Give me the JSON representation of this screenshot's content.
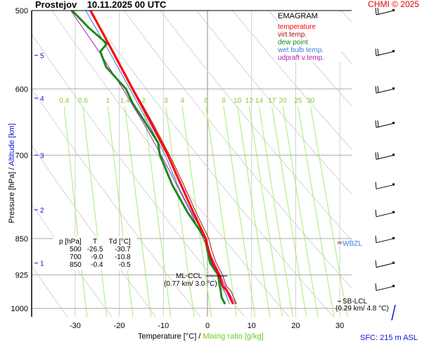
{
  "header": {
    "title": "Prostejov    10.11.2025 00 UTC",
    "copyright": "CHMI © 2025"
  },
  "legend": {
    "title": "EMAGRAM",
    "items": [
      {
        "label": "temperature",
        "color": "#ff0000"
      },
      {
        "label": "virt.temp.",
        "color": "#a01010"
      },
      {
        "label": "dew point",
        "color": "#1a8a1a"
      },
      {
        "label": "wet bulb temp.",
        "color": "#3a7ae0"
      },
      {
        "label": "udpraft v.temp.",
        "color": "#b020b0"
      }
    ]
  },
  "table": {
    "headers": [
      "p [hPa]",
      "T",
      "Td [°C]"
    ],
    "rows": [
      [
        "500",
        "-26.5",
        "-30.7"
      ],
      [
        "700",
        "-9.0",
        "-10.8"
      ],
      [
        "850",
        "-0.4",
        "-0.5"
      ]
    ]
  },
  "annotations": {
    "ml_ccl": "ML-CCL",
    "ml_ccl_val": "(0.77 km/ 3.0 °C)",
    "sb_lcl": "SB-LCL",
    "sb_lcl_val": "(0.29 km/ 4.8 °C)",
    "wbzl": "WBZL",
    "sfc": "SFC: 215 m ASL"
  },
  "chart_data": {
    "type": "line",
    "title": "EMAGRAM",
    "xlabel": "Temperature [°C]",
    "xlabel2": "Mixing ratio [g/kg]",
    "ylabel": "Pressure [hPa]",
    "ylabel2": "Altitude [km]",
    "xlim": [
      -40,
      33
    ],
    "ylim": [
      1000,
      500
    ],
    "x_ticks": [
      -30,
      -20,
      -10,
      0,
      10,
      20,
      30
    ],
    "p_ticks": [
      500,
      600,
      700,
      850,
      925,
      1000
    ],
    "alt_ticks": [
      {
        "km": 5,
        "p": 555
      },
      {
        "km": 4,
        "p": 613
      },
      {
        "km": 3,
        "p": 700
      },
      {
        "km": 2,
        "p": 795
      },
      {
        "km": 1,
        "p": 900
      }
    ],
    "mixing_ratios": [
      0.4,
      0.6,
      1,
      1.4,
      2,
      3,
      4,
      6,
      8,
      10,
      12,
      14,
      17,
      20,
      25,
      30
    ],
    "series": [
      {
        "name": "temperature",
        "color": "#ff0000",
        "p": [
          990,
          960,
          950,
          925,
          900,
          875,
          850,
          800,
          750,
          700,
          650,
          600,
          550,
          500
        ],
        "T": [
          5.8,
          4.4,
          3.5,
          2.6,
          1.2,
          0.3,
          -0.4,
          -3.2,
          -6.0,
          -9.0,
          -12.8,
          -17.0,
          -21.5,
          -26.5
        ]
      },
      {
        "name": "virt.temp.",
        "color": "#a01010",
        "p": [
          990,
          960,
          950,
          925,
          900,
          875,
          850,
          800,
          750,
          700,
          650,
          600,
          550,
          500
        ],
        "T": [
          6.6,
          5.3,
          4.3,
          3.4,
          2.0,
          1.0,
          0.3,
          -2.6,
          -5.4,
          -8.6,
          -12.4,
          -16.8,
          -21.3,
          -26.4
        ]
      },
      {
        "name": "dew point",
        "color": "#1a8a1a",
        "p": [
          990,
          975,
          960,
          950,
          925,
          900,
          875,
          850,
          800,
          750,
          700,
          680,
          650,
          620,
          600,
          570,
          550,
          540,
          520,
          500
        ],
        "T": [
          4.0,
          3.2,
          3.0,
          2.8,
          2.4,
          0.6,
          0.0,
          -0.5,
          -4.5,
          -8.0,
          -10.8,
          -11.2,
          -14.0,
          -17.0,
          -18.5,
          -23.0,
          -24.3,
          -22.8,
          -27.0,
          -30.7
        ]
      },
      {
        "name": "wet bulb temp.",
        "color": "#3a7ae0",
        "p": [
          990,
          960,
          950,
          925,
          900,
          850,
          800,
          750,
          700,
          650,
          600,
          550,
          500
        ],
        "T": [
          5.0,
          3.8,
          3.2,
          2.5,
          0.9,
          -0.4,
          -3.6,
          -6.8,
          -9.6,
          -13.4,
          -17.6,
          -22.3,
          -27.6
        ]
      },
      {
        "name": "udpraft v.temp.",
        "color": "#b020b0",
        "p": [
          990,
          950,
          925,
          900,
          850,
          800,
          750,
          700,
          650,
          600,
          550,
          500
        ],
        "T": [
          6.4,
          4.0,
          2.9,
          1.6,
          -1.0,
          -3.8,
          -7.0,
          -10.5,
          -14.5,
          -19.2,
          -24.6,
          -31.0
        ]
      }
    ],
    "wind_barbs_p": [
      500,
      550,
      600,
      650,
      700,
      750,
      800,
      850,
      900,
      950,
      990
    ]
  },
  "axis": {
    "xlabel": "Temperature [°C]",
    "sep": "/",
    "xlabel2": "Mixing ratio [g/kg]",
    "ylabel": "Pressure [hPa]",
    "ysep": "/",
    "ylabel2": "Altitude [km]"
  }
}
